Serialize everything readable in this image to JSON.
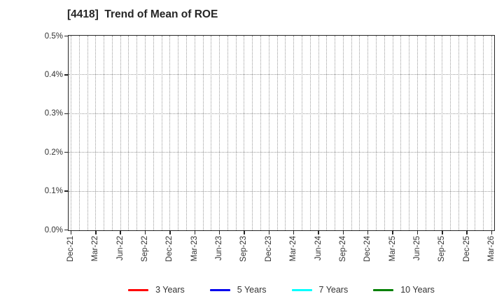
{
  "chart_data": {
    "type": "line",
    "title": "[4418]  Trend of Mean of ROE",
    "xlabel": "",
    "ylabel": "",
    "x_tick_labels": [
      "Dec-21",
      "Mar-22",
      "Jun-22",
      "Sep-22",
      "Dec-22",
      "Mar-23",
      "Jun-23",
      "Sep-23",
      "Dec-23",
      "Mar-24",
      "Jun-24",
      "Sep-24",
      "Dec-24",
      "Mar-25",
      "Jun-25",
      "Sep-25",
      "Dec-25",
      "Mar-26"
    ],
    "x_minor_gridlines_per_major": 3,
    "y_tick_labels": [
      "0.5%",
      "0.4%",
      "0.3%",
      "0.2%",
      "0.1%",
      "0.0%"
    ],
    "ylim": [
      0.0,
      0.5
    ],
    "y_unit": "%",
    "grid": true,
    "legend_position": "bottom-center",
    "series": [
      {
        "name": "3 Years",
        "color": "#ff0000",
        "values": []
      },
      {
        "name": "5 Years",
        "color": "#0000ee",
        "values": []
      },
      {
        "name": "7 Years",
        "color": "#00ffff",
        "values": []
      },
      {
        "name": "10 Years",
        "color": "#008000",
        "values": []
      }
    ],
    "no_data_plotted": true
  },
  "colors": {
    "axis": "#262626",
    "grid": "#9a9a9a",
    "text": "#333333",
    "background": "#ffffff"
  }
}
